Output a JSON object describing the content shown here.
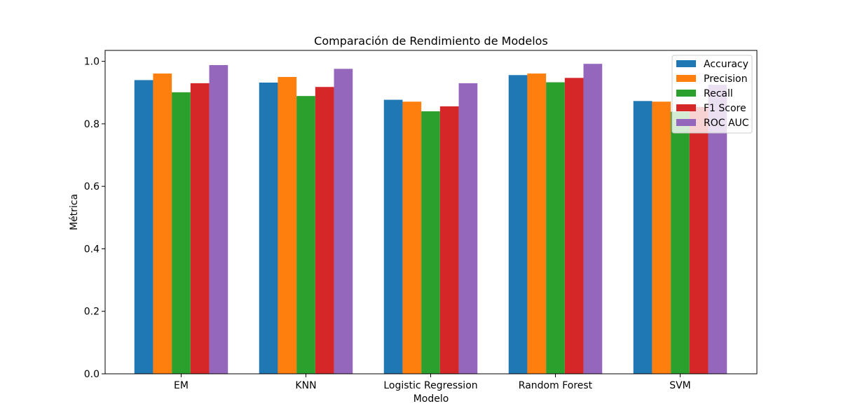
{
  "chart_data": {
    "type": "bar",
    "title": "Comparación de Rendimiento de Modelos",
    "xlabel": "Modelo",
    "ylabel": "Métrica",
    "categories": [
      "EM",
      "KNN",
      "Logistic Regression",
      "Random Forest",
      "SVM"
    ],
    "ylim": [
      0,
      1.035
    ],
    "yticks": [
      0.0,
      0.2,
      0.4,
      0.6,
      0.8,
      1.0
    ],
    "ytick_labels": [
      "0.0",
      "0.2",
      "0.4",
      "0.6",
      "0.8",
      "1.0"
    ],
    "grid": false,
    "legend_position": "top-right",
    "series": [
      {
        "name": "Accuracy",
        "color": "#1f77b4",
        "values": [
          0.94,
          0.932,
          0.877,
          0.956,
          0.873
        ]
      },
      {
        "name": "Precision",
        "color": "#ff7f0e",
        "values": [
          0.961,
          0.95,
          0.871,
          0.961,
          0.871
        ]
      },
      {
        "name": "Recall",
        "color": "#2ca02c",
        "values": [
          0.901,
          0.889,
          0.84,
          0.933,
          0.839
        ]
      },
      {
        "name": "F1 Score",
        "color": "#d62728",
        "values": [
          0.93,
          0.918,
          0.856,
          0.947,
          0.854
        ]
      },
      {
        "name": "ROC AUC",
        "color": "#9467bd",
        "values": [
          0.988,
          0.976,
          0.93,
          0.992,
          0.925
        ]
      }
    ]
  }
}
